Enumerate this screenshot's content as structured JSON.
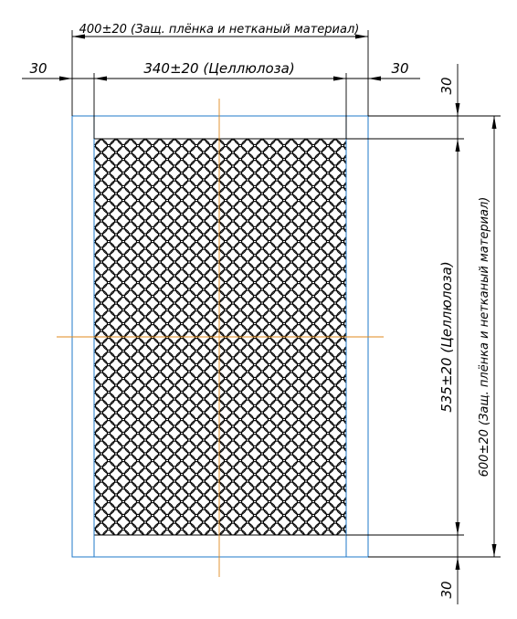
{
  "dimensions": {
    "top_outer": "400±20 (Защ. плёнка и нетканый материал)",
    "top_inner": "340±20 (Целлюлоза)",
    "left_margin": "30",
    "right_margin": "30",
    "top_margin": "30",
    "bottom_margin": "30",
    "right_inner": "535±20 (Целлюлоза)",
    "right_outer": "600±20 (Защ. плёнка и нетканый материал)"
  },
  "colors": {
    "outer_layer": "#1f78c8",
    "centerline": "#e08a1e",
    "lines": "#000000"
  }
}
